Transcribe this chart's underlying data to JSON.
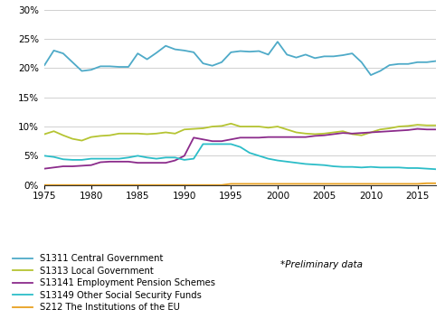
{
  "years": [
    1975,
    1976,
    1977,
    1978,
    1979,
    1980,
    1981,
    1982,
    1983,
    1984,
    1985,
    1986,
    1987,
    1988,
    1989,
    1990,
    1991,
    1992,
    1993,
    1994,
    1995,
    1996,
    1997,
    1998,
    1999,
    2000,
    2001,
    2002,
    2003,
    2004,
    2005,
    2006,
    2007,
    2008,
    2009,
    2010,
    2011,
    2012,
    2013,
    2014,
    2015,
    2016,
    2017
  ],
  "S1311": [
    20.5,
    23.0,
    22.5,
    21.0,
    19.5,
    19.7,
    20.3,
    20.3,
    20.2,
    20.2,
    22.5,
    21.5,
    22.6,
    23.8,
    23.2,
    23.0,
    22.7,
    20.8,
    20.4,
    21.0,
    22.7,
    22.9,
    22.8,
    22.9,
    22.3,
    24.5,
    22.3,
    21.8,
    22.3,
    21.7,
    22.0,
    22.0,
    22.2,
    22.5,
    21.0,
    18.8,
    19.5,
    20.5,
    20.7,
    20.7,
    21.0,
    21.0,
    21.2
  ],
  "S1313": [
    8.7,
    9.2,
    8.5,
    7.9,
    7.6,
    8.2,
    8.4,
    8.5,
    8.8,
    8.8,
    8.8,
    8.7,
    8.8,
    9.0,
    8.8,
    9.5,
    9.6,
    9.7,
    10.0,
    10.1,
    10.5,
    10.0,
    10.0,
    10.0,
    9.8,
    10.0,
    9.5,
    9.0,
    8.8,
    8.7,
    8.8,
    9.0,
    9.2,
    8.7,
    8.5,
    9.0,
    9.5,
    9.7,
    10.0,
    10.1,
    10.3,
    10.2,
    10.2
  ],
  "S13141": [
    2.8,
    3.0,
    3.2,
    3.2,
    3.3,
    3.4,
    3.9,
    4.0,
    4.0,
    4.0,
    3.8,
    3.8,
    3.8,
    3.8,
    4.2,
    5.0,
    8.1,
    7.8,
    7.5,
    7.5,
    7.8,
    8.1,
    8.1,
    8.1,
    8.2,
    8.2,
    8.2,
    8.2,
    8.2,
    8.4,
    8.5,
    8.7,
    8.9,
    8.8,
    8.9,
    9.0,
    9.1,
    9.2,
    9.3,
    9.4,
    9.6,
    9.5,
    9.5
  ],
  "S13149": [
    5.0,
    4.8,
    4.4,
    4.3,
    4.3,
    4.5,
    4.5,
    4.5,
    4.5,
    4.7,
    5.0,
    4.7,
    4.5,
    4.7,
    4.7,
    4.3,
    4.5,
    7.0,
    7.0,
    7.0,
    7.0,
    6.5,
    5.5,
    5.0,
    4.5,
    4.2,
    4.0,
    3.8,
    3.6,
    3.5,
    3.4,
    3.2,
    3.1,
    3.1,
    3.0,
    3.1,
    3.0,
    3.0,
    3.0,
    2.9,
    2.9,
    2.8,
    2.7
  ],
  "S212": [
    0.0,
    0.0,
    0.0,
    0.0,
    0.0,
    0.0,
    0.0,
    0.0,
    0.0,
    0.0,
    0.0,
    0.0,
    0.0,
    0.0,
    0.0,
    0.0,
    0.0,
    0.0,
    0.0,
    0.0,
    0.2,
    0.2,
    0.2,
    0.2,
    0.2,
    0.2,
    0.2,
    0.2,
    0.2,
    0.2,
    0.2,
    0.2,
    0.2,
    0.2,
    0.2,
    0.2,
    0.2,
    0.2,
    0.2,
    0.2,
    0.2,
    0.3,
    0.3
  ],
  "colors": {
    "S1311": "#4eaac8",
    "S1313": "#b5c432",
    "S13141": "#8b2b8b",
    "S13149": "#2cbdc8",
    "S212": "#e8a020"
  },
  "labels": {
    "S1311": "S1311 Central Government",
    "S1313": "S1313 Local Government",
    "S13141": "S13141 Employment Pension Schemes",
    "S13149": "S13149 Other Social Security Funds",
    "S212": "S212 The Institutions of the EU"
  },
  "series_order": [
    "S1311",
    "S1313",
    "S13141",
    "S13149",
    "S212"
  ],
  "xlim": [
    1975,
    2017
  ],
  "ylim": [
    0.0,
    0.3
  ],
  "xticks": [
    1975,
    1980,
    1985,
    1990,
    1995,
    2000,
    2005,
    2010,
    2015
  ],
  "yticks": [
    0.0,
    0.05,
    0.1,
    0.15,
    0.2,
    0.25,
    0.3
  ],
  "note": "*Preliminary data",
  "background_color": "#ffffff",
  "grid_color": "#d0d0d0",
  "linewidth": 1.3
}
